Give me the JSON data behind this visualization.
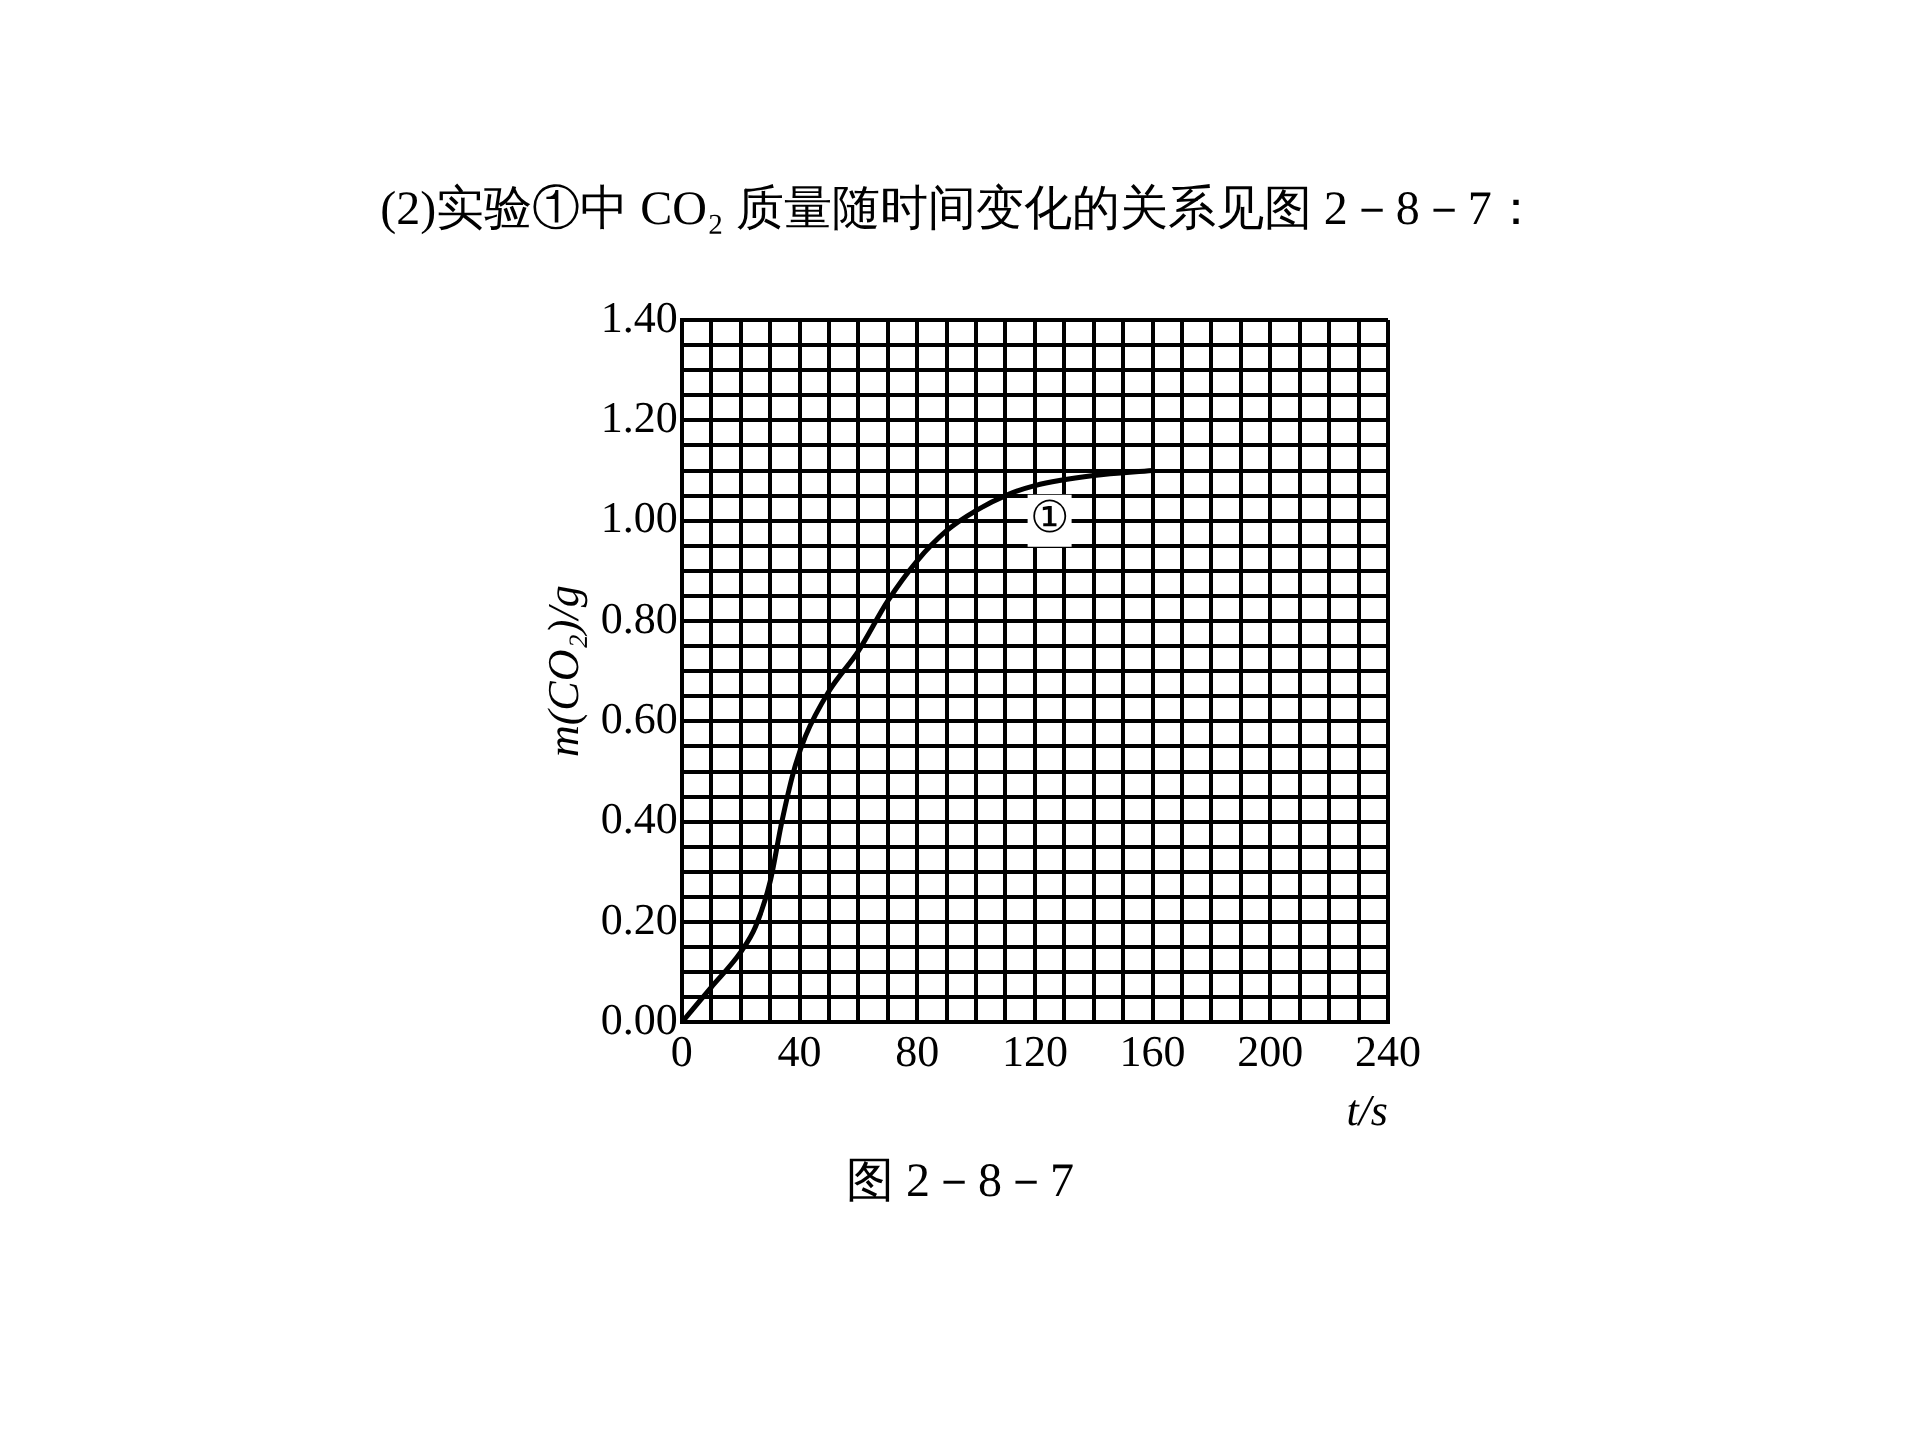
{
  "chart_data": {
    "type": "line",
    "title": "(2)实验①中 CO₂ 质量随时间变化的关系见图 2－8－7：",
    "xlabel": "t/s",
    "ylabel": "m(CO₂)/g",
    "x": [
      0,
      10,
      20,
      25,
      30,
      34,
      38,
      42,
      50,
      60,
      70,
      80,
      90,
      100,
      110,
      120,
      140,
      160
    ],
    "series": [
      {
        "color": "#000000",
        "values": [
          0,
          0.07,
          0.14,
          0.19,
          0.28,
          0.4,
          0.5,
          0.57,
          0.66,
          0.74,
          0.84,
          0.92,
          0.98,
          1.02,
          1.05,
          1.07,
          1.09,
          1.1
        ]
      }
    ],
    "xlim": [
      0,
      240
    ],
    "xticks": [
      0,
      {
        "value": 10,
        "label": null
      },
      {
        "value": 20,
        "label": null
      },
      {
        "value": 30,
        "label": null
      },
      40,
      {
        "value": 50,
        "label": null
      },
      {
        "value": 60,
        "label": null
      },
      {
        "value": 70,
        "label": null
      },
      80,
      {
        "value": 90,
        "label": null
      },
      {
        "value": 100,
        "label": null
      },
      {
        "value": 110,
        "label": null
      },
      120,
      {
        "value": 130,
        "label": null
      },
      {
        "value": 140,
        "label": null
      },
      {
        "value": 150,
        "label": null
      },
      160,
      {
        "value": 170,
        "label": null
      },
      {
        "value": 180,
        "label": null
      },
      {
        "value": 190,
        "label": null
      },
      200,
      {
        "value": 210,
        "label": null
      },
      {
        "value": 220,
        "label": null
      },
      {
        "value": 230,
        "label": null
      },
      240
    ],
    "ylim": [
      0,
      1.4
    ],
    "yticks": [
      {
        "value": 0,
        "label": "0.00"
      },
      {
        "value": 0.05,
        "label": null
      },
      {
        "value": 0.1,
        "label": null
      },
      {
        "value": 0.15,
        "label": null
      },
      {
        "value": 0.2,
        "label": "0.20"
      },
      {
        "value": 0.25,
        "label": null
      },
      {
        "value": 0.3,
        "label": null
      },
      {
        "value": 0.35,
        "label": null
      },
      {
        "value": 0.4,
        "label": "0.40"
      },
      {
        "value": 0.45,
        "label": null
      },
      {
        "value": 0.5,
        "label": null
      },
      {
        "value": 0.55,
        "label": null
      },
      {
        "value": 0.6,
        "label": "0.60"
      },
      {
        "value": 0.65,
        "label": null
      },
      {
        "value": 0.7,
        "label": null
      },
      {
        "value": 0.75,
        "label": null
      },
      {
        "value": 0.8,
        "label": "0.80"
      },
      {
        "value": 0.85,
        "label": null
      },
      {
        "value": 0.9,
        "label": null
      },
      {
        "value": 0.95,
        "label": null
      },
      {
        "value": 1.0,
        "label": "1.00"
      },
      {
        "value": 1.05,
        "label": null
      },
      {
        "value": 1.1,
        "label": null
      },
      {
        "value": 1.15,
        "label": null
      },
      {
        "value": 1.2,
        "label": "1.20"
      },
      {
        "value": 1.25,
        "label": null
      },
      {
        "value": 1.3,
        "label": null
      },
      {
        "value": 1.35,
        "label": null
      },
      {
        "value": 1.4,
        "label": "1.40"
      }
    ],
    "grid": true,
    "legend": false,
    "marker": "none",
    "line_style": "solid",
    "annotations": [
      {
        "text": "①",
        "x": 125,
        "y": 1.0
      },
      "图 2－8－7"
    ]
  }
}
